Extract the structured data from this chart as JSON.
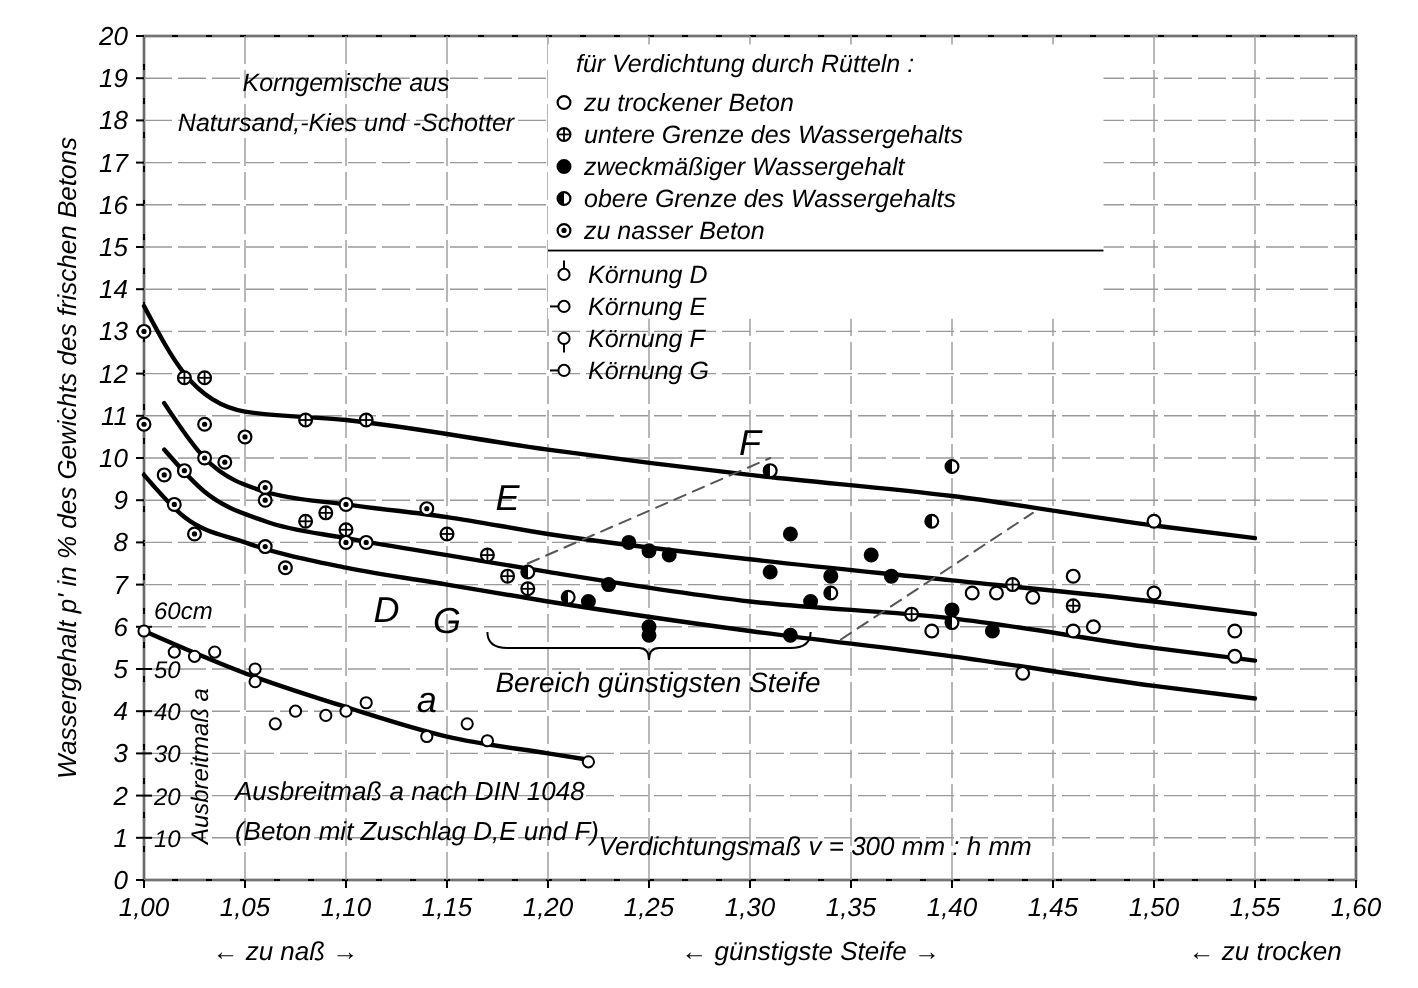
{
  "chart_data": {
    "type": "scatter",
    "ylabel": "Wassergehalt p' in % des Gewichts des frischen Betons",
    "xlabel": "Verdichtungsmaß v = 300 mm : h mm",
    "y2label": "Ausbreitmaß a",
    "legend_title": "für Verdichtung durch Rütteln :",
    "legend": "top right",
    "grid": true,
    "xlim": [
      1.0,
      1.6
    ],
    "xticks": [
      {
        "value": 1.0,
        "label": "1,00"
      },
      {
        "value": 1.05,
        "label": "1,05"
      },
      {
        "value": 1.1,
        "label": "1,10"
      },
      {
        "value": 1.15,
        "label": "1,15"
      },
      {
        "value": 1.2,
        "label": "1,20"
      },
      {
        "value": 1.25,
        "label": "1,25"
      },
      {
        "value": 1.3,
        "label": "1,30"
      },
      {
        "value": 1.35,
        "label": "1,35"
      },
      {
        "value": 1.4,
        "label": "1,40"
      },
      {
        "value": 1.45,
        "label": "1,45"
      },
      {
        "value": 1.5,
        "label": "1,50"
      },
      {
        "value": 1.55,
        "label": "1,55"
      },
      {
        "value": 1.6,
        "label": "1,60"
      }
    ],
    "ylim": [
      0,
      20
    ],
    "yticks": [
      0,
      1,
      2,
      3,
      4,
      5,
      6,
      7,
      8,
      9,
      10,
      11,
      12,
      13,
      14,
      15,
      16,
      17,
      18,
      19,
      20
    ],
    "y2lim": [
      0,
      200
    ],
    "y2ticks": [
      10,
      20,
      30,
      40,
      50,
      {
        "value": 60,
        "label": "60cm"
      }
    ],
    "series": [
      {
        "type": "line",
        "color": "#000000",
        "line_style": "solid",
        "x": [
          1.0,
          1.02,
          1.05,
          1.1,
          1.2,
          1.3,
          1.4,
          1.5,
          1.55
        ],
        "values": [
          13.6,
          12.0,
          11.1,
          10.9,
          10.2,
          9.6,
          9.1,
          8.4,
          8.1
        ]
      },
      {
        "type": "line",
        "color": "#000000",
        "line_style": "solid",
        "x": [
          1.01,
          1.03,
          1.06,
          1.1,
          1.15,
          1.2,
          1.3,
          1.4,
          1.5,
          1.55
        ],
        "values": [
          11.3,
          10.0,
          9.2,
          8.9,
          8.6,
          8.2,
          7.6,
          7.1,
          6.6,
          6.3
        ]
      },
      {
        "type": "line",
        "color": "#000000",
        "line_style": "solid",
        "x": [
          1.01,
          1.03,
          1.06,
          1.1,
          1.15,
          1.2,
          1.3,
          1.4,
          1.5,
          1.55
        ],
        "values": [
          10.2,
          9.2,
          8.5,
          8.1,
          7.7,
          7.3,
          6.6,
          6.2,
          5.5,
          5.2
        ]
      },
      {
        "type": "line",
        "color": "#000000",
        "line_style": "solid",
        "x": [
          1.0,
          1.02,
          1.05,
          1.1,
          1.15,
          1.2,
          1.3,
          1.4,
          1.5,
          1.55
        ],
        "values": [
          9.6,
          8.6,
          8.0,
          7.4,
          7.0,
          6.6,
          5.9,
          5.3,
          4.6,
          4.3
        ]
      },
      {
        "type": "line",
        "color": "#000000",
        "line_style": "solid",
        "axis": "y2",
        "x": [
          1.0,
          1.05,
          1.1,
          1.15,
          1.2,
          1.22
        ],
        "values": [
          59,
          49,
          41,
          34,
          30,
          28.5
        ]
      },
      {
        "type": "line",
        "color": "#555555",
        "line_style": "dashed",
        "x": [
          1.19,
          1.31
        ],
        "values": [
          7.5,
          10.0
        ]
      },
      {
        "type": "line",
        "color": "#555555",
        "line_style": "dashed",
        "x": [
          1.345,
          1.44
        ],
        "values": [
          5.7,
          8.7
        ]
      },
      {
        "name": "zu trockener Beton",
        "color": "#000000",
        "x": [
          1.41,
          1.422,
          1.44,
          1.46,
          1.5,
          1.46,
          1.47,
          1.54,
          1.54,
          1.435,
          1.39,
          1.5
        ],
        "values": [
          6.8,
          6.8,
          6.7,
          7.2,
          6.8,
          5.9,
          6.0,
          5.9,
          5.3,
          4.9,
          5.9,
          8.5
        ]
      },
      {
        "name": "untere Grenze des Wassergehalts",
        "color": "#000000",
        "x": [
          1.02,
          1.03,
          1.08,
          1.11,
          1.08,
          1.09,
          1.1,
          1.15,
          1.17,
          1.18,
          1.19,
          1.38,
          1.46,
          1.43
        ],
        "values": [
          11.9,
          11.9,
          10.9,
          10.9,
          8.5,
          8.7,
          8.3,
          8.2,
          7.7,
          7.2,
          6.9,
          6.3,
          6.5,
          7.0
        ]
      },
      {
        "name": "zweckmäßiger Wassergehalt",
        "color": "#000000",
        "x": [
          1.24,
          1.25,
          1.26,
          1.23,
          1.22,
          1.25,
          1.25,
          1.32,
          1.31,
          1.33,
          1.34,
          1.36,
          1.37,
          1.4,
          1.42,
          1.32
        ],
        "values": [
          8.0,
          7.8,
          7.7,
          7.0,
          6.6,
          6.0,
          5.8,
          8.2,
          7.3,
          6.6,
          7.2,
          7.7,
          7.2,
          6.4,
          5.9,
          5.8
        ]
      },
      {
        "name": "obere Grenze des Wassergehalts",
        "color": "#000000",
        "x": [
          1.31,
          1.4,
          1.39,
          1.19,
          1.21,
          1.34,
          1.4
        ],
        "values": [
          9.7,
          9.8,
          8.5,
          7.3,
          6.7,
          6.8,
          6.1
        ]
      },
      {
        "name": "zu nasser Beton",
        "color": "#000000",
        "x": [
          1.0,
          1.0,
          1.03,
          1.05,
          1.06,
          1.06,
          1.1,
          1.14,
          1.01,
          1.02,
          1.03,
          1.04,
          1.015,
          1.025,
          1.06,
          1.07,
          1.1,
          1.11
        ],
        "values": [
          13.0,
          10.8,
          10.8,
          10.5,
          9.3,
          9.0,
          8.9,
          8.8,
          9.6,
          9.7,
          10.0,
          9.9,
          8.9,
          8.2,
          7.9,
          7.4,
          8.0,
          8.0
        ]
      },
      {
        "color": "#000000",
        "axis": "y2",
        "x": [
          1.0,
          1.015,
          1.025,
          1.035,
          1.055,
          1.055,
          1.065,
          1.075,
          1.09,
          1.1,
          1.11,
          1.14,
          1.16,
          1.17,
          1.22
        ],
        "values": [
          59,
          54,
          53,
          54,
          50,
          47,
          37,
          40,
          39,
          40,
          42,
          34,
          37,
          33,
          28
        ]
      }
    ],
    "annotations": [
      {
        "text": "F",
        "x": 1.3,
        "y": 9.6
      },
      {
        "text": "E",
        "x": 1.18,
        "y": 8.3
      },
      {
        "text": "D",
        "x": 1.12,
        "y": 8.0
      },
      {
        "text": "G",
        "x": 1.15,
        "y": 7.0
      },
      {
        "text": "a",
        "x": 1.14,
        "y": 3.5
      },
      "Korngemische aus",
      "Natursand,-Kies und -Schotter",
      "Ausbreitmaß a nach DIN 1048",
      "(Beton mit Zuschlag D,E und F)",
      "Bereich günstigsten Steife",
      "← zu naß →",
      "← günstigste Steife →",
      "← zu trocken",
      "Körnung D",
      "Körnung E",
      "Körnung F",
      "Körnung G"
    ]
  }
}
